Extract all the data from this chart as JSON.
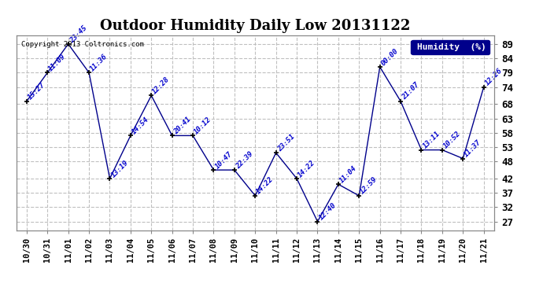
{
  "title": "Outdoor Humidity Daily Low 20131122",
  "copyright": "Copyright 2013 Coltronics.com",
  "legend_label": "Humidity  (%)",
  "xlabels": [
    "10/30",
    "10/31",
    "11/01",
    "11/02",
    "11/03",
    "11/04",
    "11/05",
    "11/06",
    "11/07",
    "11/08",
    "11/09",
    "11/10",
    "11/11",
    "11/12",
    "11/13",
    "11/14",
    "11/15",
    "11/16",
    "11/17",
    "11/18",
    "11/19",
    "11/20",
    "11/21"
  ],
  "y_values": [
    69,
    79,
    89,
    79,
    42,
    57,
    71,
    57,
    57,
    45,
    45,
    36,
    51,
    42,
    27,
    40,
    36,
    81,
    69,
    52,
    52,
    49,
    74
  ],
  "time_labels": [
    "15:27",
    "11:09",
    "23:45",
    "11:36",
    "13:19",
    "14:54",
    "12:28",
    "20:41",
    "10:12",
    "10:47",
    "22:39",
    "14:22",
    "23:51",
    "14:22",
    "12:40",
    "11:04",
    "12:59",
    "00:00",
    "21:07",
    "13:11",
    "10:52",
    "11:37",
    "12:26"
  ],
  "ytick_positions": [
    27,
    32,
    37,
    42,
    48,
    53,
    58,
    63,
    68,
    74,
    79,
    84,
    89
  ],
  "ytick_labels": [
    "27",
    "32",
    "37",
    "42",
    "48",
    "53",
    "58",
    "63",
    "68",
    "74",
    "79",
    "84",
    "89"
  ],
  "line_color": "#00008b",
  "bg_color": "#ffffff",
  "grid_color": "#c0c0c0",
  "title_fontsize": 13,
  "tick_fontsize": 9
}
